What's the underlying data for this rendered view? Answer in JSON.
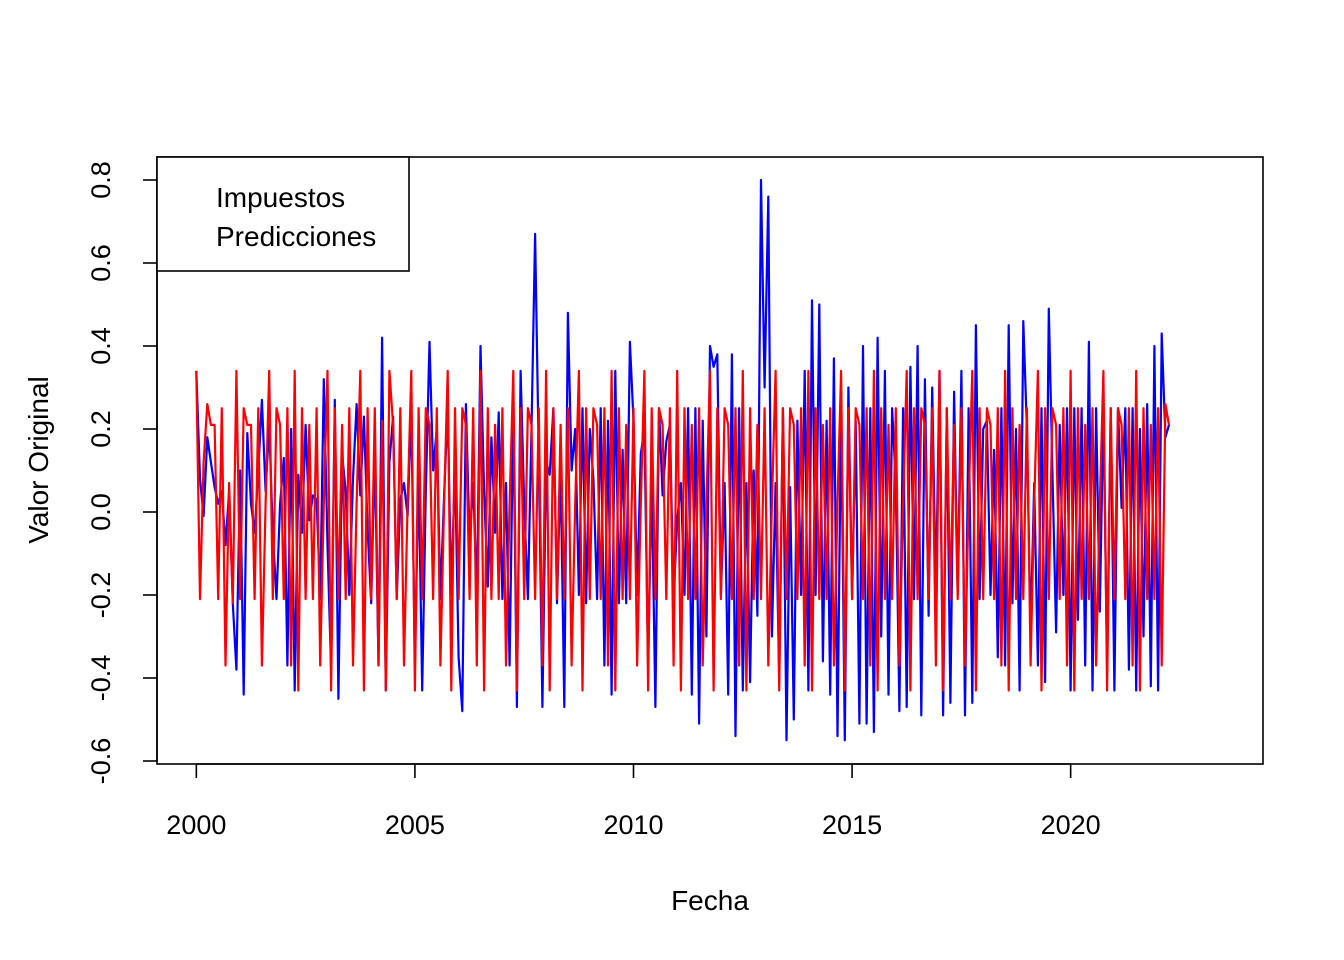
{
  "chart_data": {
    "type": "line",
    "xlabel": "Fecha",
    "ylabel": "Valor Original",
    "xlim": [
      1999.1,
      2024.4
    ],
    "ylim": [
      -0.6,
      0.8
    ],
    "x_ticks": [
      2000,
      2005,
      2010,
      2015,
      2020
    ],
    "y_ticks": [
      -0.6,
      -0.4,
      -0.2,
      0.0,
      0.2,
      0.4,
      0.6,
      0.8
    ],
    "x_tick_labels": [
      "2000",
      "2005",
      "2010",
      "2015",
      "2020"
    ],
    "y_tick_labels": [
      "-0.6",
      "-0.4",
      "-0.2",
      "0.0",
      "0.2",
      "0.4",
      "0.6",
      "0.8"
    ],
    "grid": false,
    "legend": {
      "position": "top-left",
      "entries": [
        "Impuestos",
        "Predicciones"
      ]
    },
    "start_year": 2000.0,
    "step_years": 0.083333,
    "series": [
      {
        "name": "Impuestos",
        "color": "#0000ff",
        "values": [
          0.34,
          0.08,
          -0.01,
          0.18,
          0.12,
          0.06,
          0.02,
          0.05,
          -0.08,
          0.05,
          -0.22,
          -0.38,
          0.1,
          -0.44,
          0.19,
          0.02,
          -0.05,
          0.1,
          0.27,
          0.05,
          0.21,
          -0.05,
          -0.21,
          0.02,
          0.13,
          -0.37,
          0.2,
          -0.43,
          0.09,
          -0.05,
          0.21,
          -0.02,
          0.04,
          0.03,
          -0.21,
          0.32,
          -0.08,
          -0.38,
          0.27,
          -0.45,
          0.14,
          0.05,
          -0.2,
          0.08,
          0.26,
          0.04,
          0.23,
          -0.04,
          -0.22,
          0.15,
          -0.37,
          0.42,
          -0.43,
          0.12,
          0.23,
          -0.21,
          0.03,
          0.07,
          -0.01,
          0.25,
          -0.37,
          0.1,
          -0.43,
          0.05,
          0.41,
          0.1,
          0.2,
          -0.21,
          0.04,
          0.25,
          -0.2,
          0.12,
          -0.35,
          -0.48,
          0.26,
          -0.07,
          0.07,
          -0.21,
          0.4,
          0.05,
          -0.18,
          0.18,
          -0.05,
          0.24,
          -0.21,
          0.07,
          -0.37,
          0.25,
          -0.47,
          0.34,
          0.02,
          -0.21,
          0.2,
          0.67,
          0.13,
          -0.47,
          0.12,
          0.09,
          0.25,
          -0.22,
          0.11,
          -0.47,
          0.48,
          0.1,
          0.2,
          -0.2,
          0.25,
          -0.22,
          0.2,
          0.08,
          -0.21,
          0.25,
          -0.37,
          0.22,
          -0.44,
          0.34,
          -0.22,
          0.15,
          -0.22,
          0.41,
          0.22,
          -0.2,
          0.14,
          0.2,
          -0.37,
          0.08,
          -0.47,
          0.25,
          0.04,
          0.17,
          0.21,
          -0.21,
          -0.02,
          0.07,
          -0.2,
          0.25,
          -0.44,
          0.25,
          -0.51,
          0.22,
          -0.3,
          0.4,
          0.35,
          0.38,
          -0.2,
          0.07,
          -0.44,
          0.38,
          -0.54,
          0.25,
          -0.43,
          0.07,
          -0.41,
          0.1,
          -0.25,
          0.8,
          0.3,
          0.76,
          -0.3,
          0.07,
          -0.41,
          0.25,
          -0.55,
          0.06,
          -0.5,
          0.22,
          -0.2,
          0.34,
          -0.43,
          0.51,
          -0.2,
          0.5,
          -0.36,
          0.22,
          -0.44,
          0.37,
          -0.54,
          0.25,
          -0.55,
          0.3,
          -0.21,
          0.22,
          -0.51,
          0.4,
          -0.51,
          0.25,
          -0.53,
          0.42,
          -0.3,
          0.34,
          -0.44,
          0.25,
          0.07,
          -0.48,
          0.25,
          -0.47,
          0.35,
          -0.21,
          0.4,
          -0.49,
          0.32,
          -0.25,
          0.3,
          -0.2,
          0.34,
          -0.49,
          0.25,
          -0.46,
          0.29,
          -0.2,
          0.34,
          -0.49,
          0.25,
          -0.46,
          0.45,
          -0.21,
          0.2,
          0.22,
          -0.2,
          0.15,
          -0.35,
          0.25,
          -0.37,
          0.45,
          -0.22,
          0.2,
          -0.43,
          0.46,
          0.2,
          -0.29,
          0.07,
          -0.37,
          0.25,
          -0.41,
          0.49,
          0.1,
          -0.29,
          0.21,
          -0.2,
          0.25,
          -0.43,
          0.25,
          -0.26,
          0.25,
          -0.37,
          0.41,
          -0.43,
          0.25,
          -0.24,
          0.25,
          -0.37,
          0.25,
          -0.43,
          0.25,
          0.01,
          0.25,
          -0.38,
          0.25,
          -0.43,
          0.2,
          -0.3,
          0.26,
          -0.42,
          0.4,
          -0.43,
          0.43,
          0.18,
          0.21
        ]
      },
      {
        "name": "Predicciones",
        "color": "#ff0000",
        "values": [
          0.34,
          -0.21,
          0.12,
          0.26,
          0.21,
          0.21,
          -0.21,
          0.25,
          -0.37,
          0.07,
          -0.22,
          0.34,
          -0.21,
          0.25,
          0.21,
          0.21,
          -0.21,
          0.25,
          -0.37,
          0.02,
          0.34,
          -0.21,
          0.25,
          0.21,
          -0.21,
          0.25,
          -0.37,
          0.34,
          -0.43,
          0.25,
          -0.21,
          0.21,
          -0.21,
          0.25,
          -0.37,
          0.02,
          0.34,
          -0.43,
          0.25,
          -0.21,
          0.21,
          -0.21,
          0.25,
          -0.37,
          0.02,
          0.34,
          -0.43,
          0.25,
          -0.21,
          0.25,
          -0.37,
          0.22,
          -0.43,
          0.34,
          0.21,
          -0.21,
          0.25,
          -0.37,
          0.02,
          0.34,
          -0.43,
          0.25,
          -0.21,
          0.25,
          0.21,
          -0.21,
          0.25,
          -0.37,
          0.02,
          0.34,
          -0.43,
          0.25,
          -0.21,
          0.25,
          0.21,
          -0.21,
          0.25,
          -0.37,
          0.34,
          -0.43,
          0.25,
          -0.21,
          0.21,
          -0.21,
          0.25,
          -0.37,
          0.02,
          0.34,
          -0.43,
          0.25,
          -0.21,
          0.25,
          0.21,
          -0.21,
          0.25,
          -0.37,
          0.34,
          -0.43,
          0.25,
          -0.21,
          0.21,
          -0.21,
          0.25,
          -0.37,
          0.02,
          0.34,
          -0.43,
          0.25,
          -0.21,
          0.25,
          0.21,
          -0.21,
          0.25,
          -0.37,
          0.34,
          -0.43,
          0.25,
          -0.21,
          0.21,
          -0.21,
          0.25,
          -0.37,
          0.02,
          0.34,
          -0.43,
          0.25,
          -0.21,
          0.25,
          0.21,
          -0.21,
          0.25,
          -0.37,
          0.34,
          -0.43,
          0.25,
          -0.21,
          0.21,
          -0.21,
          0.25,
          -0.37,
          0.02,
          0.34,
          -0.43,
          0.25,
          -0.21,
          0.25,
          0.21,
          -0.21,
          0.25,
          -0.37,
          0.34,
          -0.43,
          0.25,
          -0.21,
          0.21,
          -0.21,
          0.25,
          -0.37,
          0.02,
          0.34,
          -0.43,
          0.25,
          -0.21,
          0.25,
          0.21,
          -0.21,
          0.25,
          -0.37,
          0.34,
          -0.43,
          0.25,
          -0.21,
          0.21,
          -0.21,
          0.25,
          -0.37,
          0.02,
          0.34,
          -0.43,
          0.25,
          -0.21,
          0.25,
          0.21,
          -0.21,
          0.25,
          -0.37,
          0.34,
          -0.43,
          0.25,
          -0.21,
          0.21,
          -0.21,
          0.25,
          -0.37,
          0.02,
          0.34,
          -0.43,
          0.25,
          -0.21,
          0.25,
          0.21,
          -0.21,
          0.25,
          -0.37,
          0.34,
          -0.43,
          0.25,
          -0.21,
          0.21,
          -0.21,
          0.25,
          -0.37,
          0.02,
          0.34,
          -0.43,
          0.25,
          -0.21,
          0.25,
          0.21,
          -0.21,
          0.25,
          -0.37,
          0.34,
          -0.43,
          0.25,
          -0.21,
          0.21,
          -0.21,
          0.25,
          -0.37,
          0.02,
          0.34,
          -0.43,
          0.25,
          -0.21,
          0.25,
          0.21,
          -0.21,
          0.25,
          -0.37,
          0.34,
          -0.43,
          0.25,
          -0.21,
          0.21,
          -0.21,
          0.25,
          -0.37,
          0.02,
          0.34,
          -0.43,
          0.25,
          -0.21,
          0.25,
          0.21,
          -0.21,
          0.25,
          -0.37,
          0.34,
          -0.43,
          0.25,
          -0.21,
          0.21,
          -0.21,
          0.25,
          -0.37,
          0.26,
          0.21
        ]
      }
    ]
  }
}
